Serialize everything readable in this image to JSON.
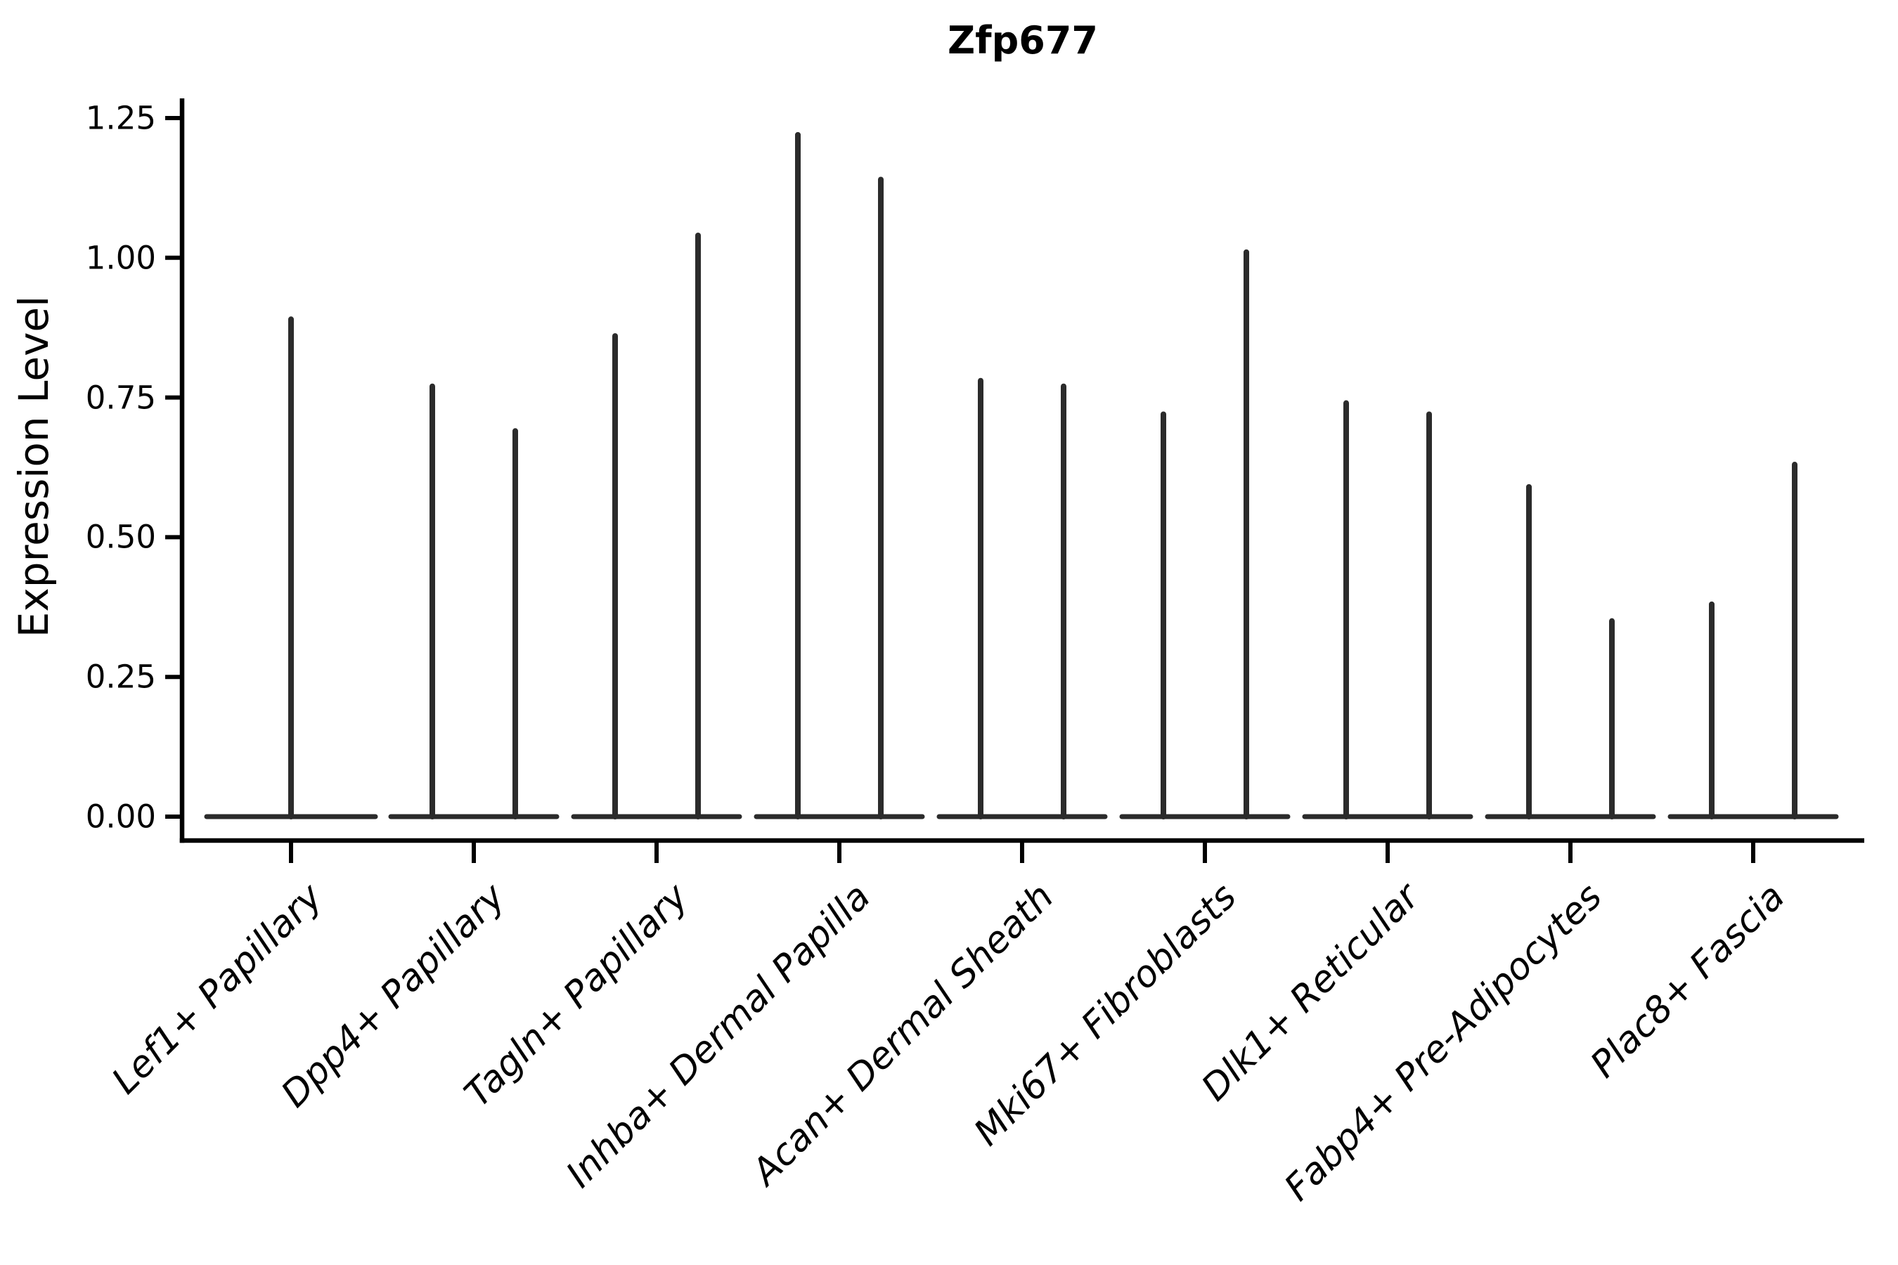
{
  "figure": {
    "title": "Zfp677",
    "y_axis_label": "Expression Level"
  },
  "chart_data": {
    "type": "violin",
    "title": "Zfp677",
    "xlabel": "",
    "ylabel": "Expression Level",
    "categories": [
      "Lef1+ Papillary",
      "Dpp4+ Papillary",
      "Tagln+ Papillary",
      "Inhba+ Dermal Papilla",
      "Acan+ Dermal Sheath",
      "Mki67+ Fibroblasts",
      "Dlk1+ Reticular",
      "Fabp4+ Pre-Adipocytes",
      "Plac8+ Fascia"
    ],
    "violins": [
      {
        "category": "Lef1+ Papillary",
        "spike_maxima": [
          0.89
        ]
      },
      {
        "category": "Dpp4+ Papillary",
        "spike_maxima": [
          0.77,
          0.69
        ]
      },
      {
        "category": "Tagln+ Papillary",
        "spike_maxima": [
          0.86,
          1.04
        ]
      },
      {
        "category": "Inhba+ Dermal Papilla",
        "spike_maxima": [
          1.22,
          1.14
        ]
      },
      {
        "category": "Acan+ Dermal Sheath",
        "spike_maxima": [
          0.78,
          0.77
        ]
      },
      {
        "category": "Mki67+ Fibroblasts",
        "spike_maxima": [
          0.72,
          1.01
        ]
      },
      {
        "category": "Dlk1+ Reticular",
        "spike_maxima": [
          0.74,
          0.72
        ]
      },
      {
        "category": "Fabp4+ Pre-Adipocytes",
        "spike_maxima": [
          0.59,
          0.35
        ]
      },
      {
        "category": "Plac8+ Fascia",
        "spike_maxima": [
          0.38,
          0.63
        ]
      }
    ],
    "baseline_value": 0.0,
    "yticks": [
      "0.00",
      "0.25",
      "0.50",
      "0.75",
      "1.00",
      "1.25"
    ],
    "ylim": [
      0,
      1.25
    ],
    "grid": false,
    "legend_position": "none",
    "x_tick_label_rotation_deg": 45,
    "x_tick_label_style": "italic",
    "colors": {
      "violin_line": "#2b2b2b",
      "axis": "#000000",
      "text": "#000000",
      "background": "#ffffff"
    }
  }
}
